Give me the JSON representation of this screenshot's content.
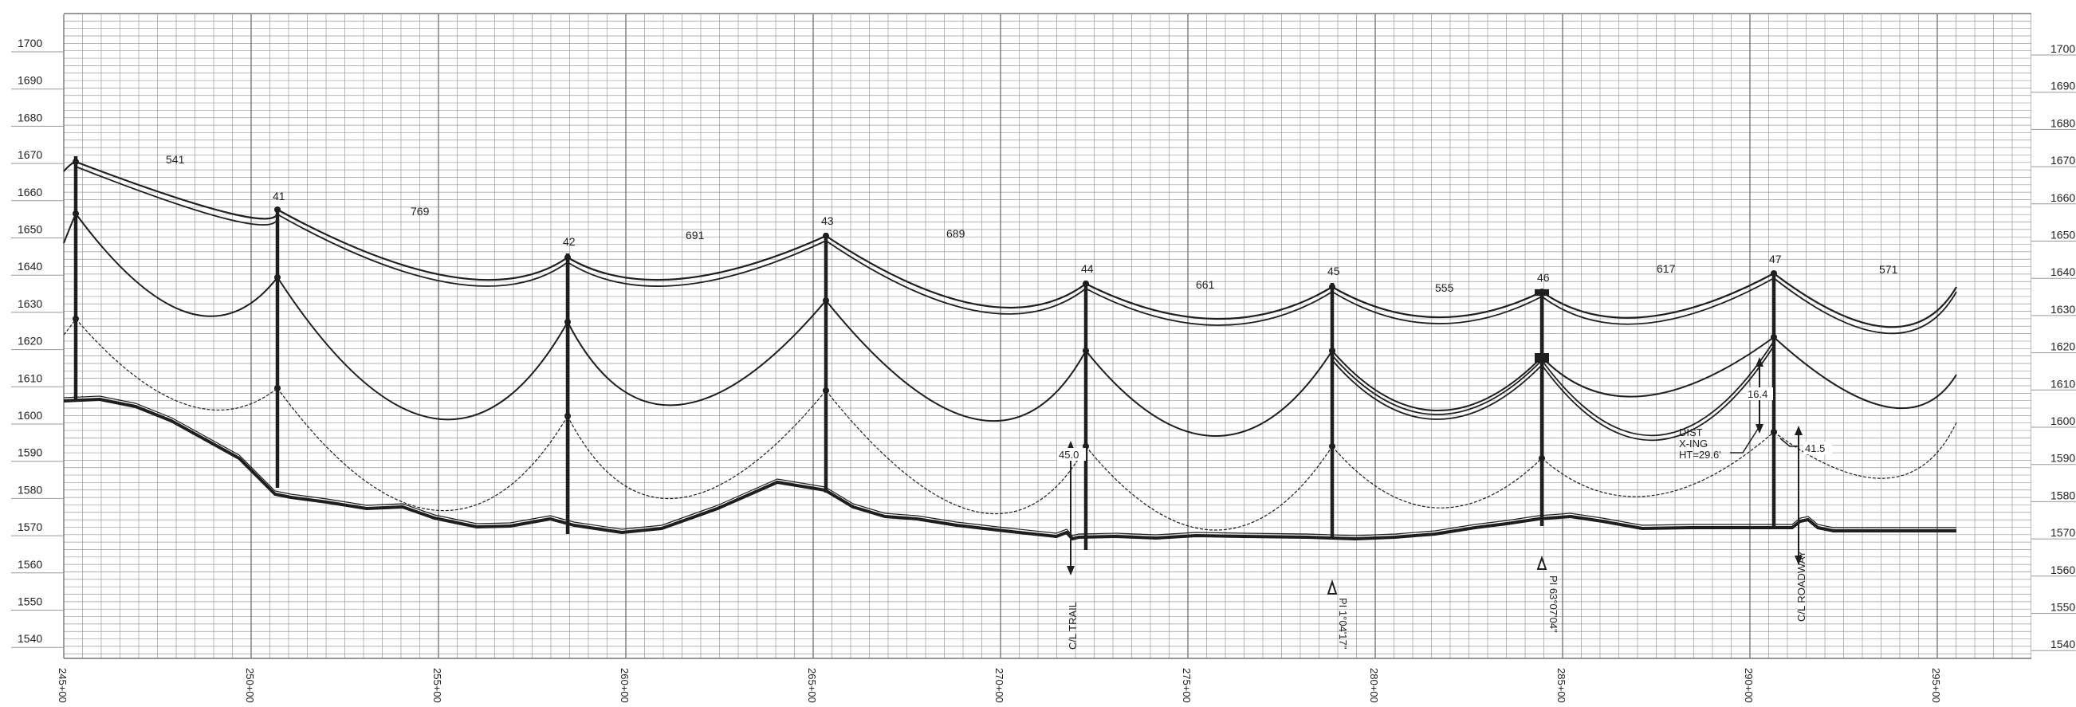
{
  "elevation_ticks": [
    "1700",
    "1690",
    "1680",
    "1670",
    "1660",
    "1650",
    "1640",
    "1630",
    "1620",
    "1610",
    "1600",
    "1590",
    "1580",
    "1570",
    "1560",
    "1550",
    "1540"
  ],
  "station_ticks": [
    "245+00",
    "250+00",
    "255+00",
    "260+00",
    "265+00",
    "270+00",
    "275+00",
    "280+00",
    "285+00",
    "290+00",
    "295+00"
  ],
  "towers": [
    {
      "label": ""
    },
    {
      "label": "41"
    },
    {
      "label": "42"
    },
    {
      "label": "43"
    },
    {
      "label": "44"
    },
    {
      "label": "45"
    },
    {
      "label": "46"
    },
    {
      "label": "47"
    }
  ],
  "span_lengths": [
    "541",
    "769",
    "691",
    "689",
    "661",
    "555",
    "617",
    "571"
  ],
  "annotations": {
    "trail_clearance": "45.0",
    "trail_label": "C/L TRAIL",
    "pi_45": "PI 1°04'17\"",
    "pi_46": "PI 63°07'04\"",
    "crossing_dist": "16.4",
    "crossing_line1": "DIST",
    "crossing_line2": "X-ING",
    "crossing_ht": "HT=29.6'",
    "roadway_clearance": "41.5",
    "roadway_label": "C/L ROADWAY"
  },
  "colors": {
    "grid": "#9a9a9a",
    "line": "#1e1e1e",
    "background": "#ffffff"
  }
}
